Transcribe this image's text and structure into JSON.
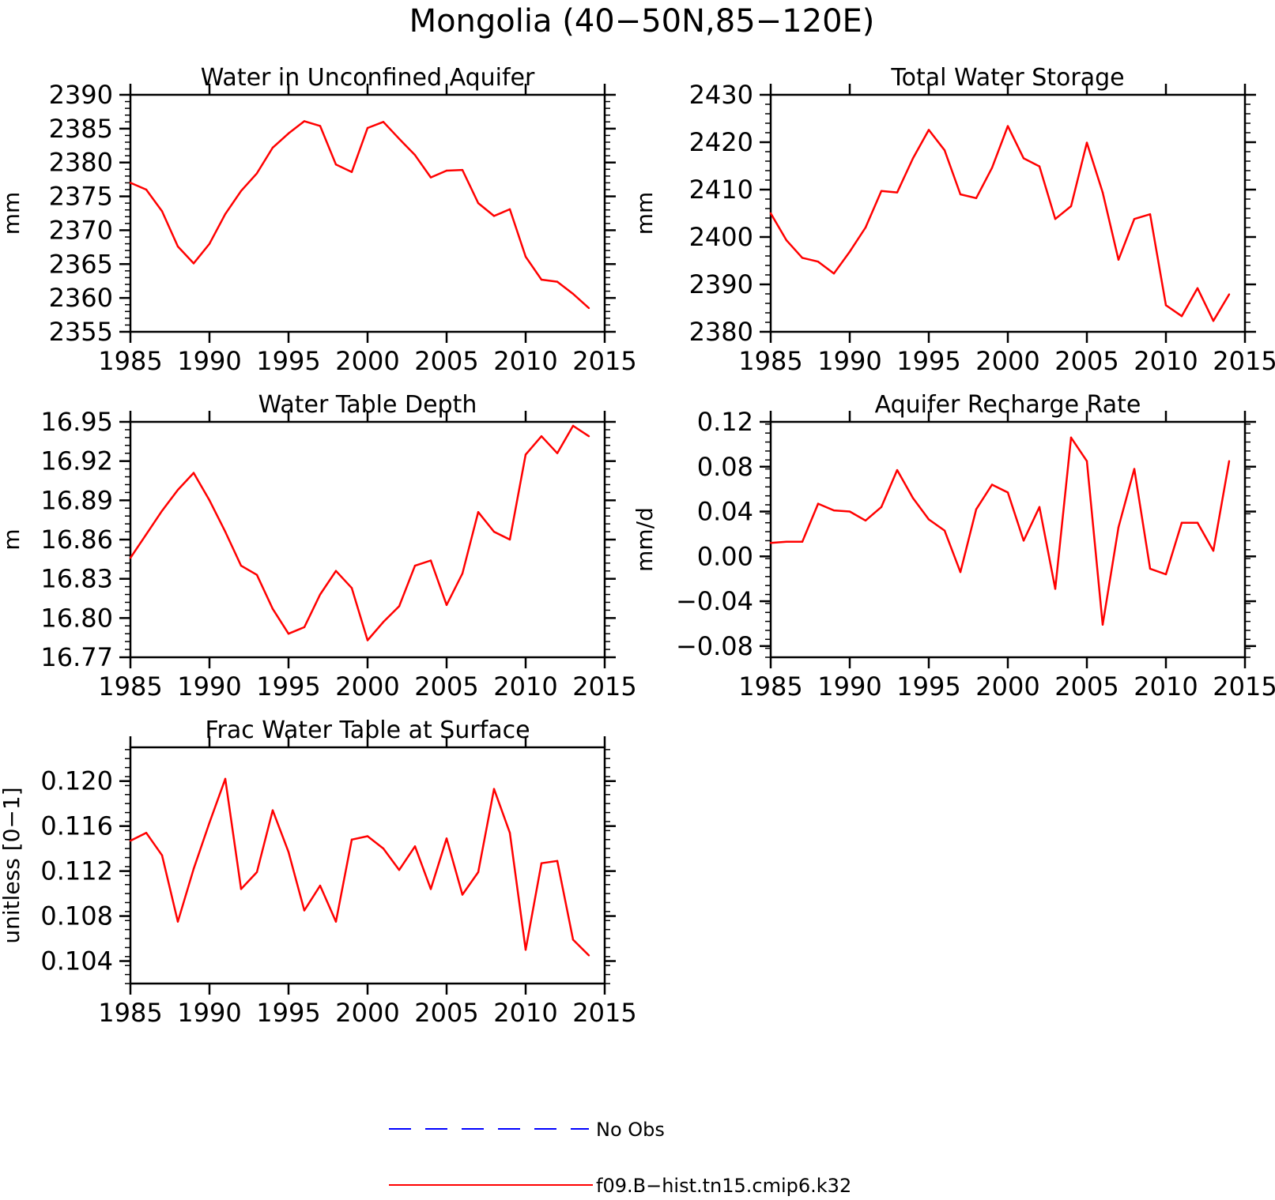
{
  "figure_title": "Mongolia (40−50N,85−120E)",
  "legend": {
    "entries": [
      {
        "label": "No Obs",
        "color": "#0000ff",
        "style": "dashed"
      },
      {
        "label": "f09.B−hist.tn15.cmip6.k32",
        "color": "#ff0000",
        "style": "solid"
      }
    ]
  },
  "chart_data": [
    {
      "type": "line",
      "title": "Water in Unconfined Aquifer",
      "xlabel": "",
      "ylabel": "mm",
      "xlim": [
        1985,
        2015
      ],
      "ylim": [
        2355,
        2390
      ],
      "xticks": [
        1985,
        1990,
        1995,
        2000,
        2005,
        2010,
        2015
      ],
      "yticks": [
        2355,
        2360,
        2365,
        2370,
        2375,
        2380,
        2385,
        2390
      ],
      "ytick_labels": [
        "2355",
        "2360",
        "2365",
        "2370",
        "2375",
        "2380",
        "2385",
        "2390"
      ],
      "x": [
        1985,
        1986,
        1987,
        1988,
        1989,
        1990,
        1991,
        1992,
        1993,
        1994,
        1995,
        1996,
        1997,
        1998,
        1999,
        2000,
        2001,
        2002,
        2003,
        2004,
        2005,
        2006,
        2007,
        2008,
        2009,
        2010,
        2011,
        2012,
        2013,
        2014
      ],
      "series": [
        {
          "color": "#ff0000",
          "values": [
            2377.0,
            2376.0,
            2372.8,
            2367.6,
            2365.1,
            2368.0,
            2372.4,
            2375.8,
            2378.4,
            2382.2,
            2384.3,
            2386.1,
            2385.4,
            2379.7,
            2378.6,
            2385.1,
            2386.0,
            2383.5,
            2381.1,
            2377.8,
            2378.8,
            2378.9,
            2374.0,
            2372.1,
            2373.1,
            2366.1,
            2362.7,
            2362.4,
            2360.6,
            2358.5
          ]
        }
      ]
    },
    {
      "type": "line",
      "title": "Total Water Storage",
      "xlabel": "",
      "ylabel": "mm",
      "xlim": [
        1985,
        2015
      ],
      "ylim": [
        2380,
        2430
      ],
      "xticks": [
        1985,
        1990,
        1995,
        2000,
        2005,
        2010,
        2015
      ],
      "yticks": [
        2380,
        2390,
        2400,
        2410,
        2420,
        2430
      ],
      "ytick_labels": [
        "2380",
        "2390",
        "2400",
        "2410",
        "2420",
        "2430"
      ],
      "x": [
        1985,
        1986,
        1987,
        1988,
        1989,
        1990,
        1991,
        1992,
        1993,
        1994,
        1995,
        1996,
        1997,
        1998,
        1999,
        2000,
        2001,
        2002,
        2003,
        2004,
        2005,
        2006,
        2007,
        2008,
        2009,
        2010,
        2011,
        2012,
        2013,
        2014
      ],
      "series": [
        {
          "color": "#ff0000",
          "values": [
            2405.0,
            2399.3,
            2395.6,
            2394.8,
            2392.3,
            2396.9,
            2402.0,
            2409.7,
            2409.4,
            2416.6,
            2422.6,
            2418.3,
            2409.0,
            2408.2,
            2414.6,
            2423.4,
            2416.6,
            2414.9,
            2403.8,
            2406.5,
            2419.9,
            2409.4,
            2395.2,
            2403.8,
            2404.8,
            2385.6,
            2383.3,
            2389.2,
            2382.3,
            2387.9
          ]
        }
      ]
    },
    {
      "type": "line",
      "title": "Water Table Depth",
      "xlabel": "",
      "ylabel": "m",
      "xlim": [
        1985,
        2015
      ],
      "ylim": [
        16.77,
        16.95
      ],
      "xticks": [
        1985,
        1990,
        1995,
        2000,
        2005,
        2010,
        2015
      ],
      "yticks": [
        16.77,
        16.8,
        16.83,
        16.86,
        16.89,
        16.92,
        16.95
      ],
      "ytick_labels": [
        "16.77",
        "16.80",
        "16.83",
        "16.86",
        "16.89",
        "16.92",
        "16.95"
      ],
      "x": [
        1985,
        1986,
        1987,
        1988,
        1989,
        1990,
        1991,
        1992,
        1993,
        1994,
        1995,
        1996,
        1997,
        1998,
        1999,
        2000,
        2001,
        2002,
        2003,
        2004,
        2005,
        2006,
        2007,
        2008,
        2009,
        2010,
        2011,
        2012,
        2013,
        2014
      ],
      "series": [
        {
          "color": "#ff0000",
          "values": [
            16.846,
            16.864,
            16.882,
            16.898,
            16.911,
            16.89,
            16.866,
            16.84,
            16.833,
            16.807,
            16.788,
            16.793,
            16.818,
            16.836,
            16.823,
            16.783,
            16.797,
            16.809,
            16.84,
            16.844,
            16.81,
            16.834,
            16.881,
            16.866,
            16.86,
            16.925,
            16.939,
            16.926,
            16.947,
            16.939
          ]
        }
      ]
    },
    {
      "type": "line",
      "title": "Aquifer Recharge Rate",
      "xlabel": "",
      "ylabel": "mm/d",
      "xlim": [
        1985,
        2015
      ],
      "ylim": [
        -0.09,
        0.12
      ],
      "xticks": [
        1985,
        1990,
        1995,
        2000,
        2005,
        2010,
        2015
      ],
      "yticks": [
        -0.08,
        -0.04,
        0.0,
        0.04,
        0.08,
        0.12
      ],
      "ytick_labels": [
        "−0.08",
        "−0.04",
        "0.00",
        "0.04",
        "0.08",
        "0.12"
      ],
      "x": [
        1985,
        1986,
        1987,
        1988,
        1989,
        1990,
        1991,
        1992,
        1993,
        1994,
        1995,
        1996,
        1997,
        1998,
        1999,
        2000,
        2001,
        2002,
        2003,
        2004,
        2005,
        2006,
        2007,
        2008,
        2009,
        2010,
        2011,
        2012,
        2013,
        2014
      ],
      "series": [
        {
          "color": "#ff0000",
          "values": [
            0.012,
            0.013,
            0.013,
            0.047,
            0.041,
            0.04,
            0.032,
            0.044,
            0.077,
            0.052,
            0.033,
            0.023,
            -0.014,
            0.042,
            0.064,
            0.057,
            0.014,
            0.044,
            -0.029,
            0.106,
            0.085,
            -0.061,
            0.026,
            0.078,
            -0.011,
            -0.016,
            0.03,
            0.03,
            0.005,
            0.085
          ]
        }
      ]
    },
    {
      "type": "line",
      "title": "Frac Water Table at Surface",
      "xlabel": "",
      "ylabel": "unitless [0−1]",
      "xlim": [
        1985,
        2015
      ],
      "ylim": [
        0.102,
        0.123
      ],
      "xticks": [
        1985,
        1990,
        1995,
        2000,
        2005,
        2010,
        2015
      ],
      "yticks": [
        0.104,
        0.108,
        0.112,
        0.116,
        0.12
      ],
      "ytick_labels": [
        "0.104",
        "0.108",
        "0.112",
        "0.116",
        "0.120"
      ],
      "x": [
        1985,
        1986,
        1987,
        1988,
        1989,
        1990,
        1991,
        1992,
        1993,
        1994,
        1995,
        1996,
        1997,
        1998,
        1999,
        2000,
        2001,
        2002,
        2003,
        2004,
        2005,
        2006,
        2007,
        2008,
        2009,
        2010,
        2011,
        2012,
        2013,
        2014
      ],
      "series": [
        {
          "color": "#ff0000",
          "values": [
            0.1147,
            0.1154,
            0.1134,
            0.1075,
            0.1122,
            0.1163,
            0.1202,
            0.1104,
            0.1119,
            0.1174,
            0.1137,
            0.1085,
            0.1107,
            0.1075,
            0.1148,
            0.1151,
            0.114,
            0.1121,
            0.1142,
            0.1104,
            0.1149,
            0.1099,
            0.1119,
            0.1193,
            0.1154,
            0.105,
            0.1127,
            0.1129,
            0.1059,
            0.1045
          ]
        }
      ]
    }
  ]
}
